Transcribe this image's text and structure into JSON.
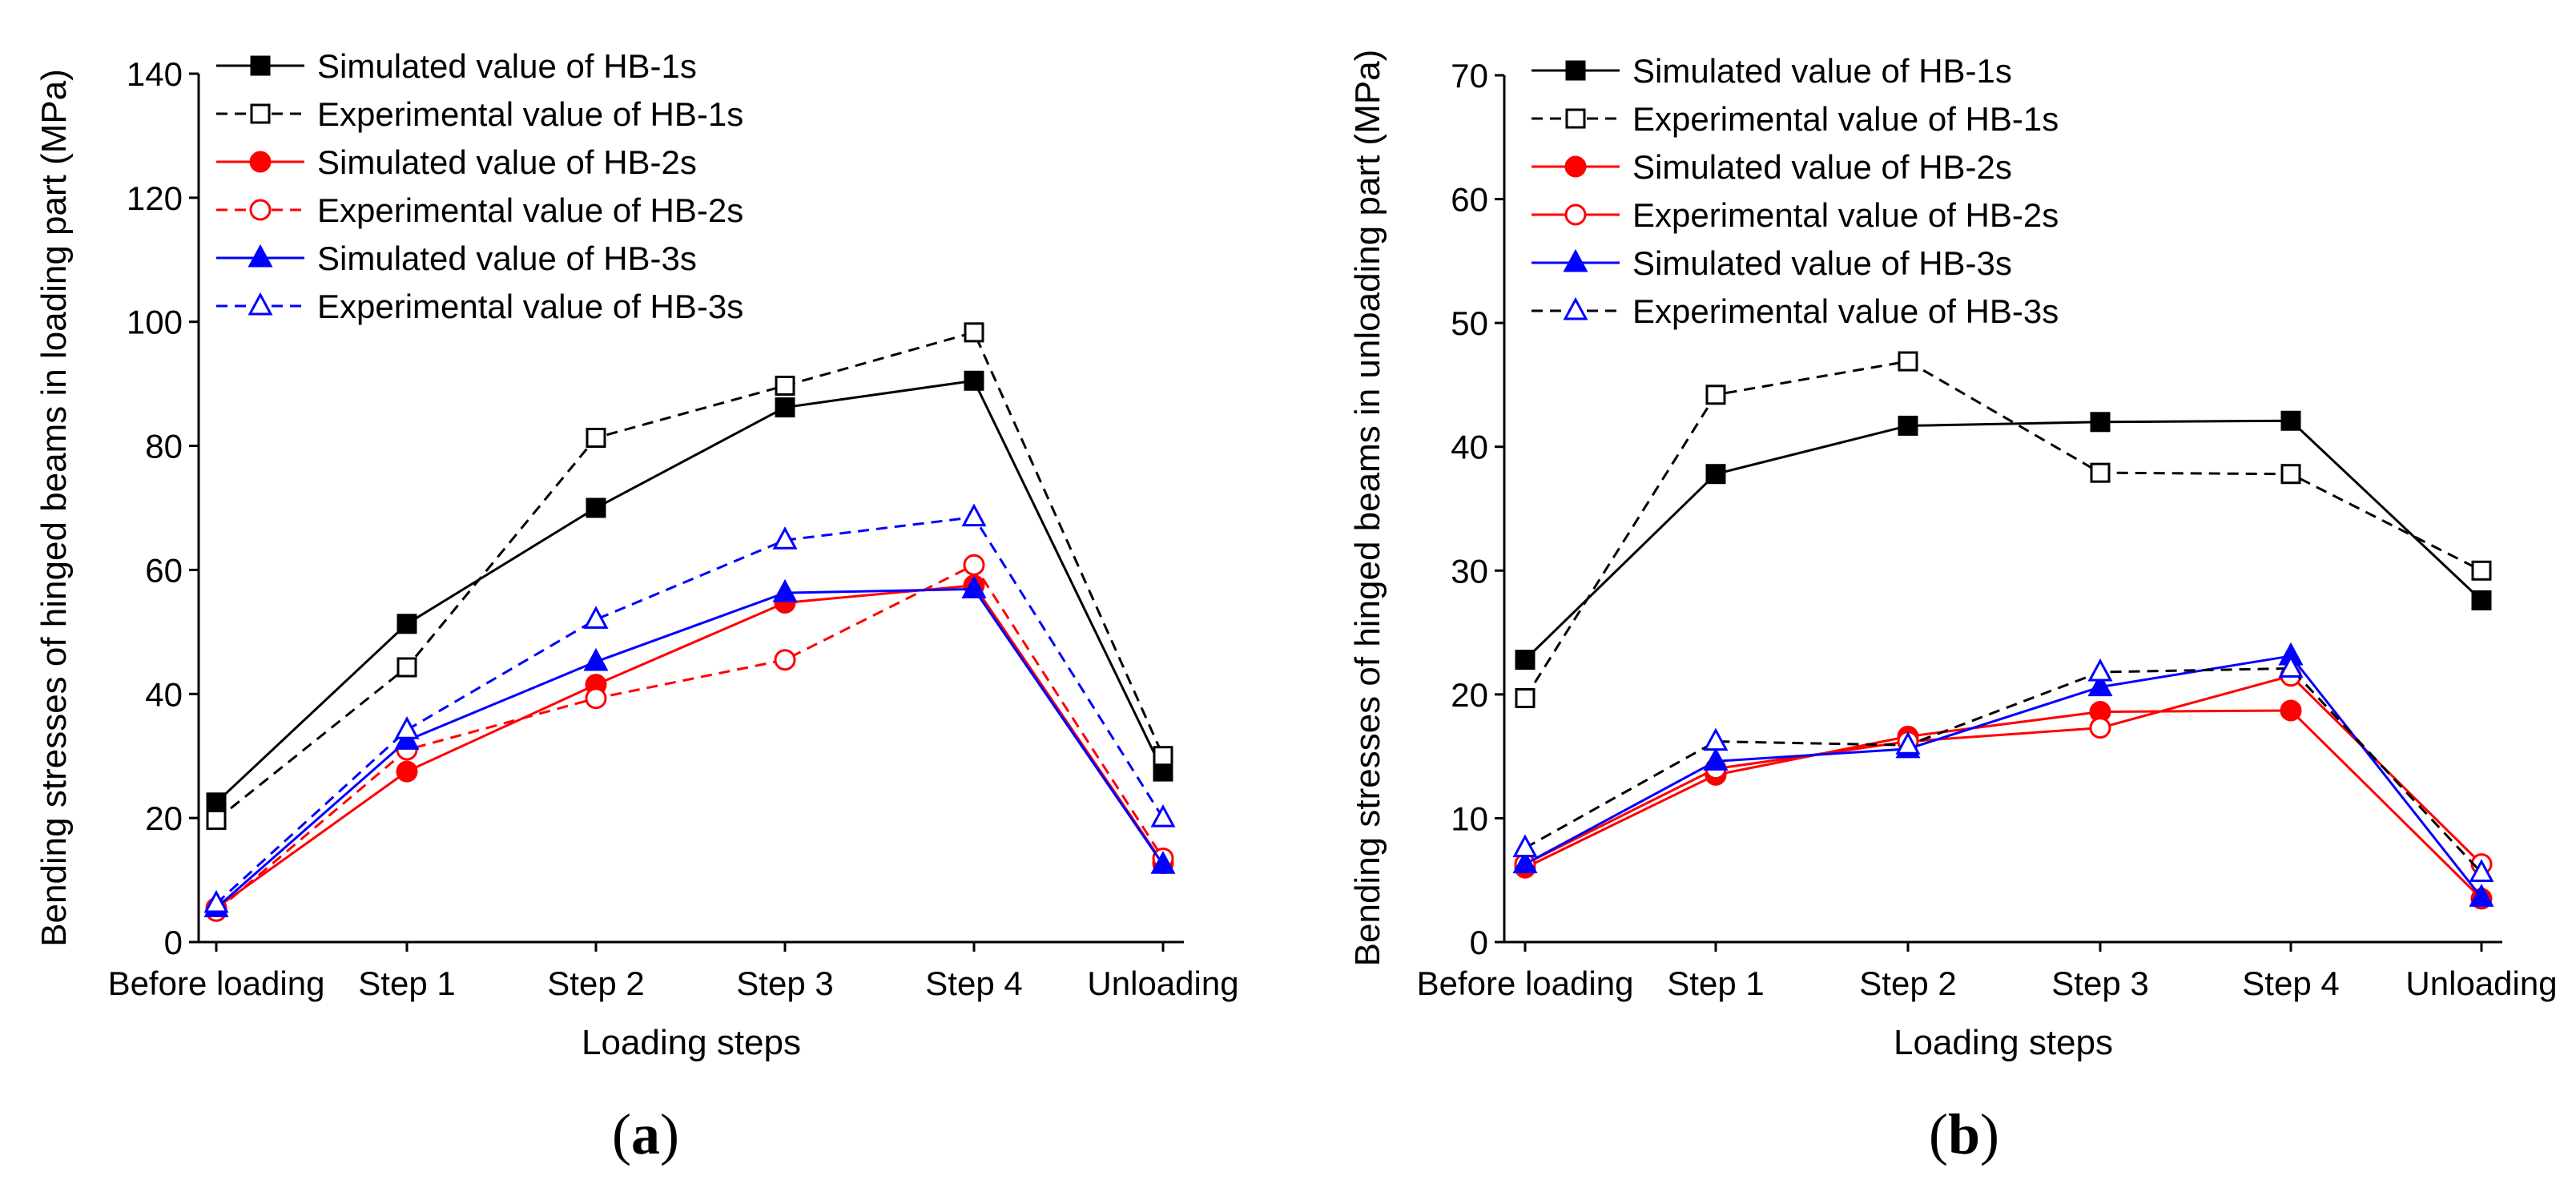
{
  "chart_data": [
    {
      "type": "line",
      "panel": "a",
      "xlabel": "Loading steps",
      "ylabel": "Bending stresses of hinged beams in loading part (MPa)",
      "categories": [
        "Before loading",
        "Step 1",
        "Step 2",
        "Step 3",
        "Step 4",
        "Unloading"
      ],
      "ylim": [
        0,
        140
      ],
      "yticks": [
        0,
        20,
        40,
        60,
        80,
        100,
        120,
        140
      ],
      "legend_position": "top-left",
      "series": [
        {
          "name": "Simulated value of HB-1s",
          "color": "#000000",
          "dash": false,
          "marker": "square",
          "filled": true,
          "values": [
            22.5,
            51.3,
            70.0,
            86.2,
            90.5,
            27.5
          ]
        },
        {
          "name": "Experimental value of HB-1s",
          "color": "#000000",
          "dash": true,
          "marker": "square",
          "filled": false,
          "values": [
            19.7,
            44.3,
            81.3,
            89.7,
            98.3,
            30.0
          ]
        },
        {
          "name": "Simulated value of HB-2s",
          "color": "#ff0000",
          "dash": false,
          "marker": "circle",
          "filled": true,
          "values": [
            5.5,
            27.5,
            41.5,
            54.7,
            57.5,
            12.7
          ]
        },
        {
          "name": "Experimental value of HB-2s",
          "color": "#ff0000",
          "dash": true,
          "marker": "circle",
          "filled": false,
          "values": [
            5.0,
            31.0,
            39.3,
            45.5,
            60.8,
            13.5
          ]
        },
        {
          "name": "Simulated value of HB-3s",
          "color": "#0000ff",
          "dash": false,
          "marker": "triangle",
          "filled": true,
          "values": [
            5.5,
            32.5,
            45.2,
            56.3,
            56.9,
            12.5
          ]
        },
        {
          "name": "Experimental value of HB-3s",
          "color": "#0000ff",
          "dash": true,
          "marker": "triangle",
          "filled": false,
          "values": [
            6.2,
            34.2,
            52.0,
            64.8,
            68.5,
            20.0
          ]
        }
      ]
    },
    {
      "type": "line",
      "panel": "b",
      "xlabel": "Loading steps",
      "ylabel": "Bending stresses of hinged beams in unloading part (MPa)",
      "categories": [
        "Before loading",
        "Step 1",
        "Step 2",
        "Step 3",
        "Step 4",
        "Unloading"
      ],
      "ylim": [
        0,
        70
      ],
      "yticks": [
        0,
        10,
        20,
        30,
        40,
        50,
        60,
        70
      ],
      "legend_position": "top-left",
      "series": [
        {
          "name": "Simulated value of HB-1s",
          "color": "#000000",
          "dash": false,
          "marker": "square",
          "filled": true,
          "values": [
            22.8,
            37.8,
            41.7,
            42.0,
            42.1,
            27.6
          ]
        },
        {
          "name": "Experimental value of HB-1s",
          "color": "#000000",
          "dash": true,
          "marker": "square",
          "filled": false,
          "values": [
            19.7,
            44.2,
            46.9,
            37.9,
            37.8,
            30.0
          ]
        },
        {
          "name": "Simulated value of HB-2s",
          "color": "#ff0000",
          "dash": false,
          "marker": "circle",
          "filled": true,
          "values": [
            6.0,
            13.5,
            16.6,
            18.6,
            18.7,
            3.5
          ]
        },
        {
          "name": "Experimental value of HB-2s",
          "color": "#ff0000",
          "dash": false,
          "marker": "circle",
          "filled": false,
          "values": [
            6.3,
            14.0,
            16.2,
            17.3,
            21.5,
            6.3
          ]
        },
        {
          "name": "Simulated value of HB-3s",
          "color": "#0000ff",
          "dash": false,
          "marker": "triangle",
          "filled": true,
          "values": [
            6.3,
            14.6,
            15.6,
            20.6,
            23.1,
            3.6
          ]
        },
        {
          "name": "Experimental value of HB-3s",
          "color": "#000000",
          "dash": true,
          "marker": "triangle",
          "filled": false,
          "stroke": "#0000ff",
          "values": [
            7.6,
            16.2,
            15.9,
            21.8,
            22.1,
            5.6
          ]
        }
      ]
    }
  ],
  "panel_labels": {
    "a": "(a)",
    "b": "(b)"
  }
}
